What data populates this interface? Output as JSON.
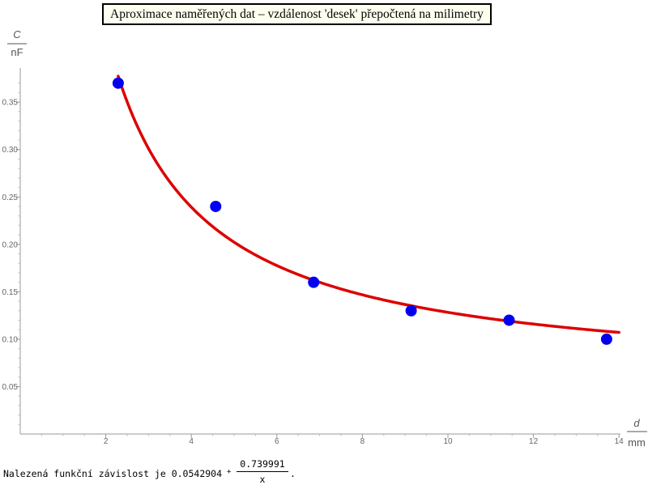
{
  "chart_data": {
    "type": "scatter",
    "title": "Aproximace naměřených dat – vzdálenost 'desek' přepočtená na milimetry",
    "xlabel": {
      "symbol": "d",
      "unit": "mm"
    },
    "ylabel": {
      "symbol": "C",
      "unit": "nF"
    },
    "xlim": [
      0,
      14
    ],
    "ylim": [
      0,
      0.38
    ],
    "x_ticks": [
      2,
      4,
      6,
      8,
      10,
      12,
      14
    ],
    "x_tick_labels": [
      "2",
      "4",
      "6",
      "8",
      "10",
      "12",
      "14"
    ],
    "y_ticks": [
      0.05,
      0.1,
      0.15,
      0.2,
      0.25,
      0.3,
      0.35
    ],
    "y_tick_labels": [
      "0.05",
      "0.10",
      "0.15",
      "0.20",
      "0.25",
      "0.30",
      "0.35"
    ],
    "points": {
      "x": [
        2.29,
        4.57,
        6.86,
        9.14,
        11.43,
        13.71
      ],
      "y": [
        0.37,
        0.24,
        0.16,
        0.13,
        0.12,
        0.1
      ],
      "color": "#0000ee"
    },
    "fit": {
      "a": 0.0542904,
      "b": 0.739991,
      "x_start": 2.29,
      "x_end": 14.0,
      "color": "#dd0000"
    },
    "grid": false
  },
  "footer": {
    "prefix": "Nalezená funkční závislost je 0.0542904",
    "plus": "+",
    "numerator": "0.739991",
    "denominator": "x",
    "suffix": "."
  }
}
